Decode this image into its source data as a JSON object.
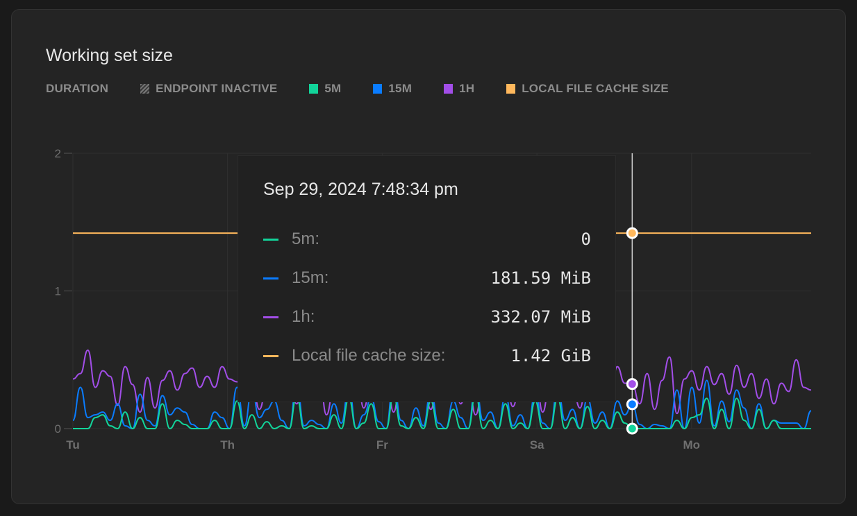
{
  "title": "Working set size",
  "legend": {
    "heading": "DURATION",
    "items": [
      {
        "label": "ENDPOINT INACTIVE",
        "pattern": "hatched"
      },
      {
        "label": "5M",
        "color": "#12d49a"
      },
      {
        "label": "15M",
        "color": "#0a7cff"
      },
      {
        "label": "1H",
        "color": "#a24ee8"
      },
      {
        "label": "LOCAL FILE CACHE SIZE",
        "color": "#ffb85c"
      }
    ]
  },
  "tooltip": {
    "date": "Sep 29, 2024 7:48:34 pm",
    "rows": [
      {
        "label": "5m:",
        "value": "0",
        "color": "#12d49a"
      },
      {
        "label": "15m:",
        "value": "181.59 MiB",
        "color": "#0a7cff"
      },
      {
        "label": "1h:",
        "value": "332.07 MiB",
        "color": "#a24ee8"
      },
      {
        "label": "Local file cache size:",
        "value": "1.42 GiB",
        "color": "#ffb85c"
      }
    ]
  },
  "chart_data": {
    "type": "line",
    "title": "Working set size",
    "unit": "GiB",
    "ylim": [
      0,
      2
    ],
    "yticks": [
      "0",
      "1",
      "2"
    ],
    "xticks": [
      "Tu",
      "Th",
      "Fr",
      "Sa",
      "Mo"
    ],
    "grid": true,
    "hover_index": 75,
    "series": [
      {
        "name": "5m",
        "color": "#12d49a",
        "values": [
          0,
          0,
          0,
          0.08,
          0.1,
          0.02,
          0,
          0.12,
          0,
          0.08,
          0,
          0,
          0.18,
          0,
          0.06,
          0.03,
          0,
          0,
          0,
          0.06,
          0,
          0,
          0.2,
          0,
          0.1,
          0,
          0.05,
          0,
          0.02,
          0,
          0.24,
          0,
          0.02,
          0,
          0,
          0.1,
          0,
          0.22,
          0,
          0.04,
          0.18,
          0,
          0,
          0.24,
          0.02,
          0,
          0.08,
          0,
          0.2,
          0,
          0,
          0.14,
          0,
          0,
          0.25,
          0,
          0.06,
          0,
          0.18,
          0,
          0.04,
          0,
          0.2,
          0,
          0,
          0.22,
          0,
          0.08,
          0,
          0.16,
          0,
          0.06,
          0,
          0.12,
          0.04,
          0,
          0,
          0,
          0,
          0,
          0,
          0.06,
          0,
          0.08,
          0.1,
          0.22,
          0,
          0.14,
          0,
          0.22,
          0.06,
          0,
          0.14,
          0,
          0.06,
          0,
          0,
          0,
          0,
          0
        ]
      },
      {
        "name": "15m",
        "color": "#0a7cff",
        "values": [
          0.06,
          0.3,
          0.08,
          0.1,
          0.12,
          0.06,
          0.18,
          0.02,
          0,
          0.25,
          0.06,
          0.02,
          0.24,
          0.1,
          0.15,
          0.12,
          0.03,
          0,
          0,
          0.12,
          0.08,
          0,
          0.3,
          0.02,
          0.28,
          0.08,
          0.14,
          0.2,
          0.06,
          0,
          0.33,
          0.02,
          0.06,
          0.03,
          0,
          0.18,
          0.04,
          0.3,
          0,
          0.1,
          0.22,
          0.05,
          0,
          0.35,
          0.06,
          0,
          0.15,
          0.02,
          0.28,
          0.04,
          0,
          0.2,
          0.08,
          0,
          0.32,
          0.06,
          0.12,
          0,
          0.24,
          0.02,
          0.1,
          0,
          0.26,
          0.04,
          0,
          0.3,
          0.06,
          0.14,
          0,
          0.22,
          0.04,
          0.12,
          0,
          0.2,
          0.1,
          0.177,
          0.03,
          0,
          0.03,
          0.02,
          0,
          0.28,
          0,
          0.3,
          0.04,
          0.35,
          0.02,
          0.2,
          0.05,
          0.28,
          0.15,
          0,
          0.18,
          0,
          0.06,
          0.04,
          0.04,
          0.04,
          0,
          0.13
        ]
      },
      {
        "name": "1h",
        "color": "#a24ee8",
        "values": [
          0.36,
          0.4,
          0.57,
          0.3,
          0.42,
          0.38,
          0.17,
          0.45,
          0.32,
          0.12,
          0.37,
          0.15,
          0.35,
          0.42,
          0.28,
          0.4,
          0.44,
          0.3,
          0.38,
          0.3,
          0.45,
          0.36,
          0.34,
          0.31,
          0.36,
          0.14,
          0.3,
          0.48,
          0.22,
          0.4,
          0.18,
          0.35,
          0.25,
          0.42,
          0.1,
          0.3,
          0.38,
          0.22,
          0.45,
          0.15,
          0.33,
          0.28,
          0.4,
          0.12,
          0.36,
          0.46,
          0.2,
          0.31,
          0.14,
          0.38,
          0.26,
          0.42,
          0.18,
          0.35,
          0.1,
          0.3,
          0.44,
          0.24,
          0.38,
          0.16,
          0.34,
          0.27,
          0.41,
          0.12,
          0.36,
          0.22,
          0.44,
          0.3,
          0.15,
          0.4,
          0.28,
          0.36,
          0.2,
          0.45,
          0.33,
          0.324,
          0.18,
          0.4,
          0.14,
          0.35,
          0.52,
          0.11,
          0.36,
          0.42,
          0.28,
          0.45,
          0.32,
          0.4,
          0.25,
          0.46,
          0.3,
          0.4,
          0.22,
          0.36,
          0.18,
          0.33,
          0.27,
          0.5,
          0.3,
          0.28
        ]
      },
      {
        "name": "Local file cache size",
        "color": "#ffb85c",
        "constant": 1.42
      }
    ]
  }
}
